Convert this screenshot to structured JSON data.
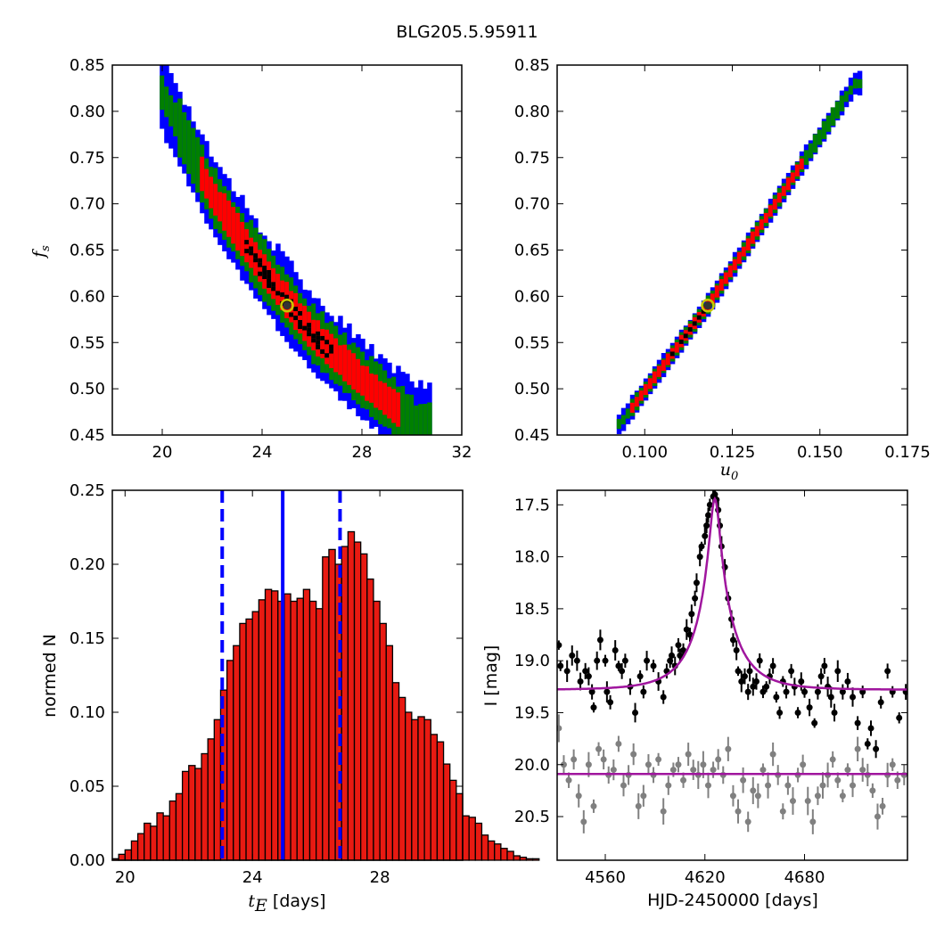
{
  "figure": {
    "suptitle": "BLG205.5.95911"
  },
  "colors": {
    "blue": "#0000ff",
    "green": "#008000",
    "red": "#ff0000",
    "black": "#000000",
    "grey": "#808080",
    "magenta": "#a0169e",
    "bar": "#e81a12"
  },
  "chart_data": [
    {
      "id": "fs-vs-tE",
      "type": "heatmap",
      "title": "",
      "xlabel": "",
      "ylabel": "f_s",
      "ylabel_base": "f",
      "ylabel_sub": "s",
      "xlim": [
        18,
        32
      ],
      "ylim": [
        0.45,
        0.85
      ],
      "xticks": [
        "20",
        "24",
        "28",
        "32"
      ],
      "yticks": [
        "0.45",
        "0.50",
        "0.55",
        "0.60",
        "0.65",
        "0.70",
        "0.75",
        "0.80",
        "0.85"
      ],
      "band": {
        "centerline": [
          [
            20,
            0.82
          ],
          [
            22,
            0.71
          ],
          [
            24,
            0.63
          ],
          [
            26,
            0.56
          ],
          [
            28,
            0.51
          ],
          [
            30,
            0.465
          ]
        ],
        "levels": [
          {
            "color": "blue",
            "halfwidth": 0.042
          },
          {
            "color": "green",
            "halfwidth": 0.03
          },
          {
            "color": "red",
            "halfwidth": 0.018
          },
          {
            "color": "black",
            "halfwidth": 0.007
          }
        ],
        "x_range": [
          19.9,
          30.7
        ],
        "red_range": [
          21.5,
          29.5
        ],
        "black_range": [
          23.3,
          26.8
        ]
      },
      "best_fit": {
        "x": 25.0,
        "y": 0.59
      }
    },
    {
      "id": "fs-vs-u0",
      "type": "heatmap",
      "title": "",
      "xlabel": "u_0",
      "xlabel_base": "u",
      "xlabel_sub": "0",
      "ylabel": "",
      "xlim": [
        0.075,
        0.175
      ],
      "ylim": [
        0.45,
        0.85
      ],
      "xticks": [
        "0.100",
        "0.125",
        "0.150",
        "0.175"
      ],
      "yticks": [
        "0.45",
        "0.50",
        "0.55",
        "0.60",
        "0.65",
        "0.70",
        "0.75",
        "0.80",
        "0.85"
      ],
      "band": {
        "centerline": [
          [
            0.093,
            0.462
          ],
          [
            0.118,
            0.59
          ],
          [
            0.16,
            0.83
          ]
        ],
        "levels": [
          {
            "color": "blue",
            "halfwidth": 0.012
          },
          {
            "color": "green",
            "halfwidth": 0.009
          },
          {
            "color": "red",
            "halfwidth": 0.006
          },
          {
            "color": "black",
            "halfwidth": 0.002
          }
        ],
        "x_range": [
          0.092,
          0.161
        ],
        "red_range": [
          0.096,
          0.145
        ],
        "black_range": [
          0.106,
          0.12
        ]
      },
      "best_fit": {
        "x": 0.118,
        "y": 0.59
      }
    },
    {
      "id": "tE-histogram",
      "type": "bar",
      "title": "",
      "xlabel_var": "t",
      "xlabel_sub": "E",
      "xlabel_unit": "[days]",
      "ylabel": "normed N",
      "xlim": [
        19.6,
        30.6
      ],
      "ylim": [
        0.0,
        0.25
      ],
      "xticks": [
        "20",
        "24",
        "28"
      ],
      "yticks": [
        "0.00",
        "0.05",
        "0.10",
        "0.15",
        "0.20",
        "0.25"
      ],
      "bin_start": 19.6,
      "bin_width": 0.2,
      "values": [
        0.001,
        0.004,
        0.007,
        0.013,
        0.018,
        0.025,
        0.023,
        0.032,
        0.03,
        0.04,
        0.045,
        0.06,
        0.064,
        0.062,
        0.072,
        0.082,
        0.095,
        0.115,
        0.135,
        0.145,
        0.16,
        0.163,
        0.168,
        0.176,
        0.183,
        0.182,
        0.175,
        0.18,
        0.175,
        0.177,
        0.183,
        0.175,
        0.17,
        0.205,
        0.21,
        0.2,
        0.212,
        0.222,
        0.215,
        0.207,
        0.19,
        0.175,
        0.16,
        0.145,
        0.12,
        0.11,
        0.1,
        0.095,
        0.097,
        0.095,
        0.085,
        0.08,
        0.065,
        0.054,
        0.045,
        0.03,
        0.029,
        0.025,
        0.017,
        0.013,
        0.011,
        0.008,
        0.006,
        0.003,
        0.002,
        0.001,
        0.001
      ],
      "vlines": [
        {
          "x": 23.05,
          "style": "dashed"
        },
        {
          "x": 24.95,
          "style": "solid"
        },
        {
          "x": 26.75,
          "style": "dashed"
        }
      ]
    },
    {
      "id": "lightcurve",
      "type": "scatter",
      "title": "",
      "xlabel": "HJD-2450000 [days]",
      "ylabel": "I [mag]",
      "xlim": [
        4531,
        4742
      ],
      "ylim": [
        20.92,
        17.36
      ],
      "xticks": [
        "4560",
        "4620",
        "4680"
      ],
      "yticks": [
        "17.5",
        "18.0",
        "18.5",
        "19.0",
        "19.5",
        "20.0",
        "20.5"
      ],
      "model_peak": {
        "t0": 4626,
        "tE": 25,
        "u0": 0.118,
        "fs": 0.59,
        "base_mag": 19.28
      },
      "baseline_model_mag": 20.09,
      "series": [
        {
          "color": "black",
          "errbar": 0.15,
          "points": [
            [
              4532,
              18.85
            ],
            [
              4533,
              19.05
            ],
            [
              4537,
              19.1
            ],
            [
              4540,
              18.95
            ],
            [
              4543,
              19.0
            ],
            [
              4545,
              19.2
            ],
            [
              4548,
              19.1
            ],
            [
              4550,
              19.15
            ],
            [
              4552,
              19.3
            ],
            [
              4553,
              19.45
            ],
            [
              4555,
              19.0
            ],
            [
              4557,
              18.8
            ],
            [
              4560,
              19.0
            ],
            [
              4561,
              19.3
            ],
            [
              4563,
              19.4
            ],
            [
              4566,
              18.9
            ],
            [
              4568,
              19.05
            ],
            [
              4570,
              19.1
            ],
            [
              4572,
              19.0
            ],
            [
              4575,
              19.25
            ],
            [
              4578,
              19.5
            ],
            [
              4581,
              19.15
            ],
            [
              4583,
              19.3
            ],
            [
              4585,
              19.0
            ],
            [
              4589,
              19.05
            ],
            [
              4592,
              19.2
            ],
            [
              4595,
              19.35
            ],
            [
              4597,
              19.1
            ],
            [
              4599,
              19.0
            ],
            [
              4600,
              18.95
            ],
            [
              4602,
              19.05
            ],
            [
              4604,
              18.85
            ],
            [
              4605,
              18.95
            ],
            [
              4607,
              18.9
            ],
            [
              4609,
              18.7
            ],
            [
              4611,
              18.75
            ],
            [
              4612,
              18.55
            ],
            [
              4614,
              18.4
            ],
            [
              4615,
              18.25
            ],
            [
              4617,
              18.0
            ],
            [
              4618,
              17.9
            ],
            [
              4620,
              17.8
            ],
            [
              4621,
              17.7
            ],
            [
              4622,
              17.6
            ],
            [
              4623,
              17.5
            ],
            [
              4625,
              17.42
            ],
            [
              4626,
              17.4
            ],
            [
              4627,
              17.45
            ],
            [
              4628,
              17.55
            ],
            [
              4629,
              17.7
            ],
            [
              4630,
              17.9
            ],
            [
              4632,
              18.1
            ],
            [
              4634,
              18.4
            ],
            [
              4636,
              18.6
            ],
            [
              4637,
              18.8
            ],
            [
              4639,
              18.9
            ],
            [
              4640,
              19.1
            ],
            [
              4642,
              19.2
            ],
            [
              4644,
              19.15
            ],
            [
              4646,
              19.3
            ],
            [
              4647,
              19.1
            ],
            [
              4649,
              19.25
            ],
            [
              4651,
              19.2
            ],
            [
              4653,
              19.0
            ],
            [
              4655,
              19.3
            ],
            [
              4657,
              19.25
            ],
            [
              4659,
              19.15
            ],
            [
              4661,
              19.05
            ],
            [
              4663,
              19.35
            ],
            [
              4665,
              19.5
            ],
            [
              4667,
              19.2
            ],
            [
              4669,
              19.3
            ],
            [
              4672,
              19.1
            ],
            [
              4674,
              19.25
            ],
            [
              4676,
              19.5
            ],
            [
              4678,
              19.2
            ],
            [
              4680,
              19.3
            ],
            [
              4683,
              19.45
            ],
            [
              4686,
              19.6
            ],
            [
              4688,
              19.3
            ],
            [
              4690,
              19.15
            ],
            [
              4692,
              19.05
            ],
            [
              4694,
              19.25
            ],
            [
              4696,
              19.35
            ],
            [
              4698,
              19.5
            ],
            [
              4700,
              19.1
            ],
            [
              4703,
              19.3
            ],
            [
              4706,
              19.2
            ],
            [
              4709,
              19.35
            ],
            [
              4712,
              19.6
            ],
            [
              4715,
              19.3
            ],
            [
              4718,
              19.8
            ],
            [
              4720,
              19.65
            ],
            [
              4723,
              19.85
            ],
            [
              4726,
              19.4
            ],
            [
              4730,
              19.1
            ],
            [
              4733,
              19.3
            ],
            [
              4737,
              19.55
            ],
            [
              4741,
              19.3
            ]
          ]
        },
        {
          "color": "grey",
          "errbar": 0.2,
          "points": [
            [
              4532,
              19.65
            ],
            [
              4535,
              20.0
            ],
            [
              4538,
              20.15
            ],
            [
              4541,
              19.95
            ],
            [
              4544,
              20.3
            ],
            [
              4547,
              20.55
            ],
            [
              4550,
              20.0
            ],
            [
              4553,
              20.4
            ],
            [
              4556,
              19.85
            ],
            [
              4559,
              19.95
            ],
            [
              4562,
              20.1
            ],
            [
              4565,
              20.05
            ],
            [
              4568,
              19.8
            ],
            [
              4571,
              20.2
            ],
            [
              4574,
              20.1
            ],
            [
              4577,
              19.9
            ],
            [
              4580,
              20.4
            ],
            [
              4583,
              20.3
            ],
            [
              4586,
              20.0
            ],
            [
              4589,
              20.1
            ],
            [
              4592,
              19.95
            ],
            [
              4595,
              20.45
            ],
            [
              4598,
              20.2
            ],
            [
              4601,
              20.05
            ],
            [
              4604,
              20.0
            ],
            [
              4607,
              20.15
            ],
            [
              4610,
              19.9
            ],
            [
              4613,
              20.05
            ],
            [
              4616,
              20.1
            ],
            [
              4619,
              20.0
            ],
            [
              4622,
              20.2
            ],
            [
              4625,
              20.05
            ],
            [
              4628,
              19.95
            ],
            [
              4631,
              20.1
            ],
            [
              4634,
              19.85
            ],
            [
              4637,
              20.3
            ],
            [
              4640,
              20.45
            ],
            [
              4643,
              20.15
            ],
            [
              4646,
              20.55
            ],
            [
              4649,
              20.25
            ],
            [
              4652,
              20.3
            ],
            [
              4655,
              20.05
            ],
            [
              4658,
              20.2
            ],
            [
              4661,
              19.9
            ],
            [
              4664,
              20.1
            ],
            [
              4667,
              20.45
            ],
            [
              4670,
              20.2
            ],
            [
              4673,
              20.35
            ],
            [
              4676,
              20.1
            ],
            [
              4679,
              20.0
            ],
            [
              4682,
              20.35
            ],
            [
              4685,
              20.55
            ],
            [
              4688,
              20.3
            ],
            [
              4691,
              20.2
            ],
            [
              4694,
              20.1
            ],
            [
              4697,
              19.95
            ],
            [
              4700,
              20.15
            ],
            [
              4703,
              20.3
            ],
            [
              4706,
              20.05
            ],
            [
              4709,
              20.2
            ],
            [
              4712,
              19.85
            ],
            [
              4715,
              20.05
            ],
            [
              4718,
              20.1
            ],
            [
              4721,
              20.25
            ],
            [
              4724,
              20.5
            ],
            [
              4727,
              20.4
            ],
            [
              4730,
              20.1
            ],
            [
              4733,
              20.0
            ],
            [
              4736,
              20.15
            ],
            [
              4740,
              20.1
            ]
          ]
        }
      ]
    }
  ]
}
